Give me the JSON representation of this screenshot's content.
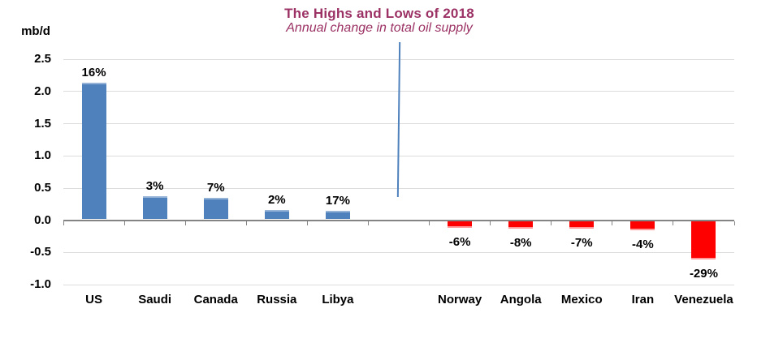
{
  "chart_data": {
    "type": "bar",
    "title": "The Highs and Lows of  2018",
    "subtitle": "Annual change in total oil supply",
    "ylabel": "mb/d",
    "categories": [
      "US",
      "Saudi",
      "Canada",
      "Russia",
      "Libya",
      "Norway",
      "Angola",
      "Mexico",
      "Iran",
      "Venezuela"
    ],
    "series": [
      {
        "name": "Annual change in total oil supply (mb/d)",
        "values": [
          2.14,
          0.37,
          0.35,
          0.16,
          0.15,
          -0.14,
          -0.16,
          -0.15,
          -0.18,
          -0.63
        ]
      }
    ],
    "data_labels": [
      "16%",
      "3%",
      "7%",
      "2%",
      "17%",
      "-6%",
      "-8%",
      "-7%",
      "-4%",
      "-29%"
    ],
    "y_ticks": [
      2.5,
      2.0,
      1.5,
      1.0,
      0.5,
      0.0,
      -0.5,
      -1.0
    ],
    "ylim": [
      -1.0,
      2.5
    ],
    "grid": true,
    "legend": "none",
    "divider_between": [
      "Libya",
      "Norway"
    ],
    "blank_slot_index": 5,
    "colors": {
      "positive_bar": "#4f81bd",
      "positive_bar_edge": "#95b3d7",
      "negative_bar": "#ff0000",
      "title_text": "#9b3164",
      "axis_line": "#848484",
      "gridline": "#dcdcdc",
      "divider_line": "#4f81bd",
      "label_text": "#000000"
    }
  }
}
